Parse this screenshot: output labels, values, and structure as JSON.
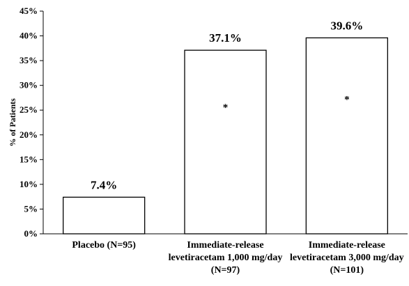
{
  "chart_data": {
    "type": "bar",
    "title": "",
    "xlabel": "",
    "ylabel": "% of Patients",
    "ylim": [
      0,
      45
    ],
    "yticks": [
      0,
      5,
      10,
      15,
      20,
      25,
      30,
      35,
      40,
      45
    ],
    "ytick_suffix": "%",
    "grid": false,
    "bar_fill": "#ffffff",
    "bar_stroke": "#000000",
    "categories": [
      [
        "Placebo (N=95)"
      ],
      [
        "Immediate-release",
        "levetiracetam 1,000 mg/day",
        "(N=97)"
      ],
      [
        "Immediate-release",
        "levetiracetam 3,000 mg/day",
        "(N=101)"
      ]
    ],
    "values": [
      7.4,
      37.1,
      39.6
    ],
    "data_labels": [
      "7.4%",
      "37.1%",
      "39.6%"
    ],
    "annotations": [
      "",
      "*",
      "*"
    ]
  }
}
